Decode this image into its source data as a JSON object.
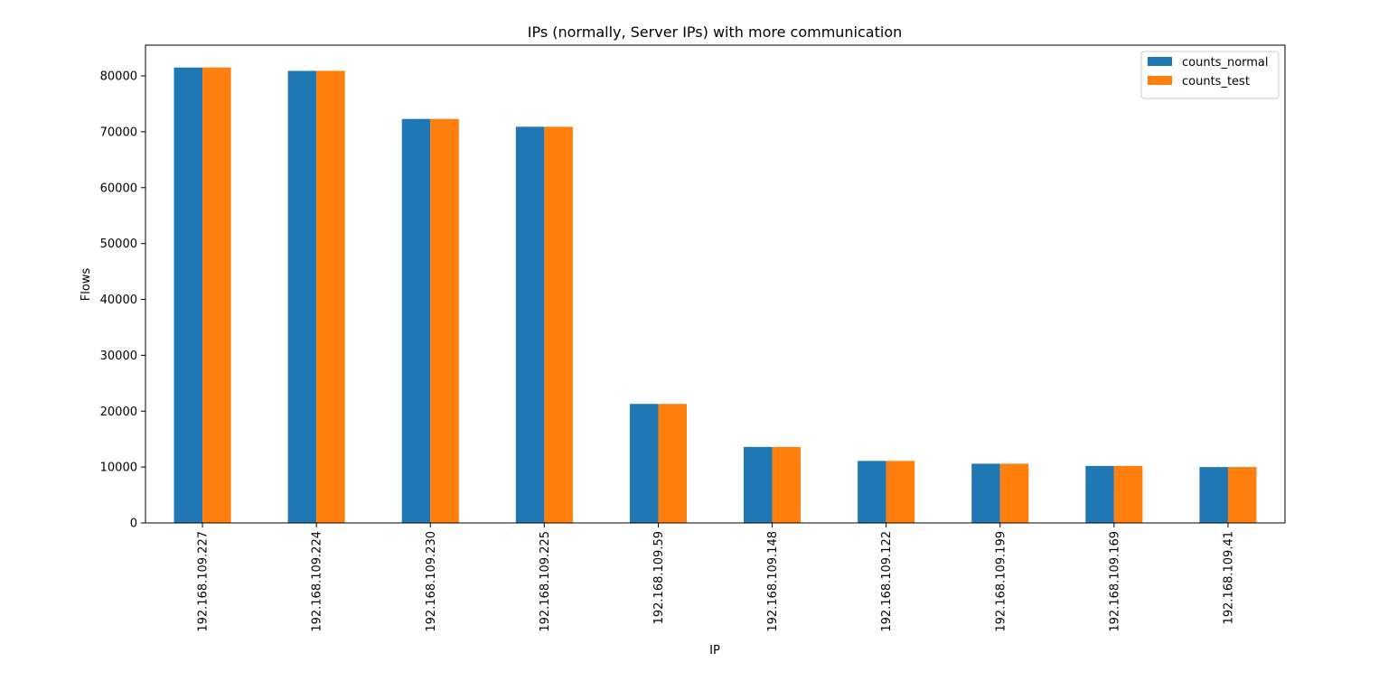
{
  "chart_data": {
    "type": "bar",
    "title": "IPs (normally, Server IPs) with more communication",
    "xlabel": "IP",
    "ylabel": "Flows",
    "ylim": [
      0,
      85500
    ],
    "yticks": [
      0,
      10000,
      20000,
      30000,
      40000,
      50000,
      60000,
      70000,
      80000
    ],
    "categories": [
      "192.168.109.227",
      "192.168.109.224",
      "192.168.109.230",
      "192.168.109.225",
      "192.168.109.59",
      "192.168.109.148",
      "192.168.109.122",
      "192.168.109.199",
      "192.168.109.169",
      "192.168.109.41"
    ],
    "series": [
      {
        "name": "counts_normal",
        "color": "#1f77b4",
        "values": [
          81500,
          80900,
          72300,
          70900,
          21300,
          13600,
          11100,
          10600,
          10200,
          10000
        ]
      },
      {
        "name": "counts_test",
        "color": "#ff7f0e",
        "values": [
          81500,
          80900,
          72300,
          70900,
          21300,
          13600,
          11100,
          10600,
          10200,
          10000
        ]
      }
    ],
    "grid": false,
    "legend_position": "top-right"
  }
}
